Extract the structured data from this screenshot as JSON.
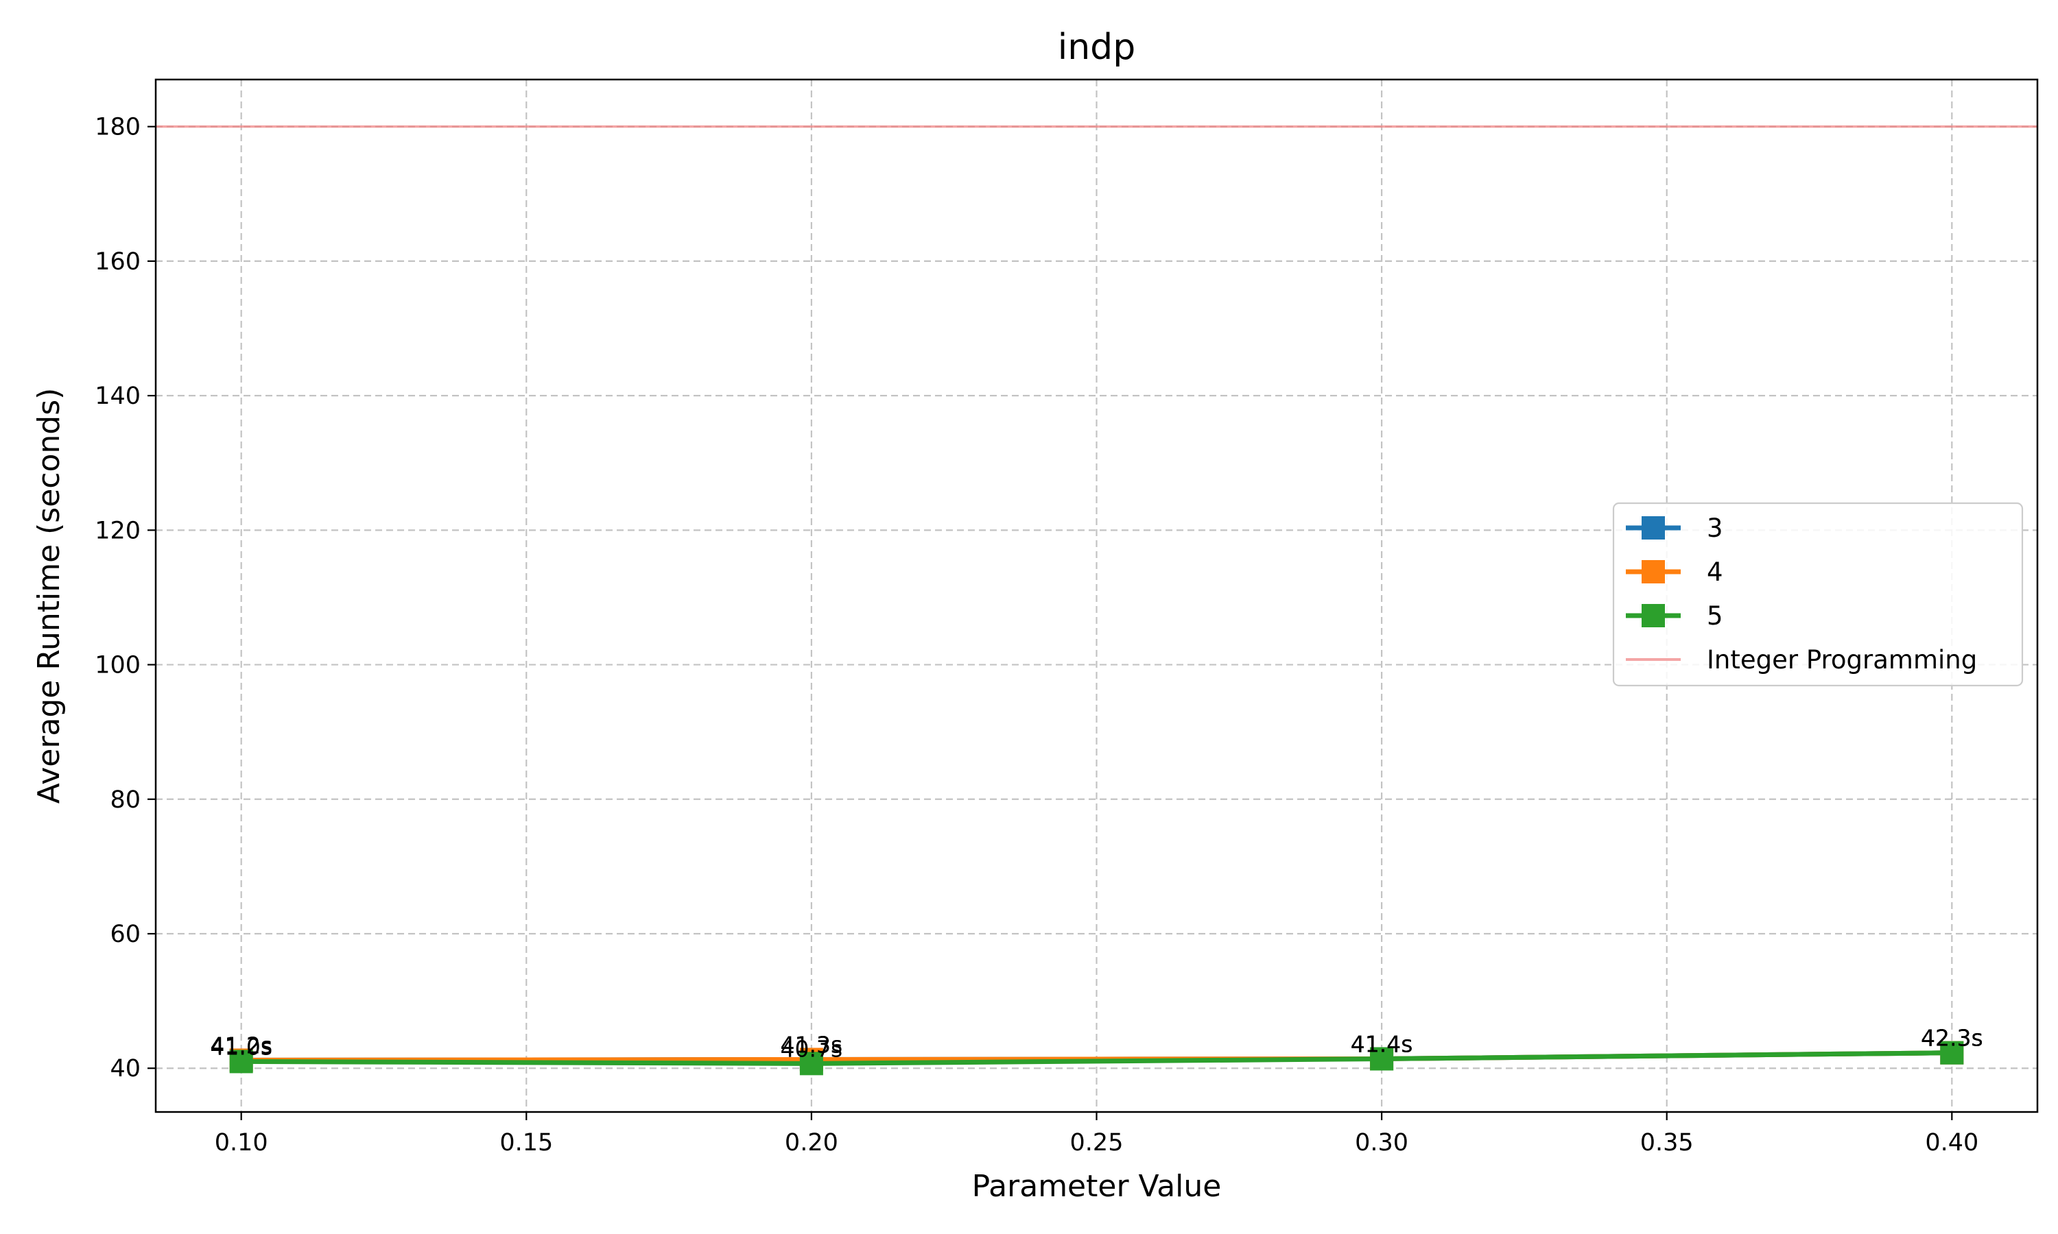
{
  "chart_data": {
    "type": "line",
    "title": "indp",
    "xlabel": "Parameter Value",
    "ylabel": "Average Runtime (seconds)",
    "xlim": [
      0.085,
      0.415
    ],
    "ylim": [
      33.5,
      187
    ],
    "x_ticks": [
      "0.10",
      "0.15",
      "0.20",
      "0.25",
      "0.30",
      "0.35",
      "0.40"
    ],
    "y_ticks": [
      "40",
      "60",
      "80",
      "100",
      "120",
      "140",
      "160",
      "180"
    ],
    "x_tick_values": [
      0.1,
      0.15,
      0.2,
      0.25,
      0.3,
      0.35,
      0.4
    ],
    "y_tick_values": [
      40,
      60,
      80,
      100,
      120,
      140,
      160,
      180
    ],
    "grid": true,
    "legend_position": "center-right",
    "series": [
      {
        "name": "3",
        "color": "#1f77b4",
        "x": [
          0.1,
          0.2,
          0.3,
          0.4
        ],
        "values": [
          41.2,
          41.3,
          41.4,
          42.3
        ],
        "labels": [
          "41.2s",
          "41.3s",
          "41.4s",
          "42.3s"
        ]
      },
      {
        "name": "4",
        "color": "#ff7f0e",
        "x": [
          0.1,
          0.2,
          0.3,
          0.4
        ],
        "values": [
          41.2,
          41.3,
          41.4,
          42.3
        ],
        "labels": [
          "41.2s",
          "41.3s",
          "41.4s",
          "42.3s"
        ]
      },
      {
        "name": "5",
        "color": "#2ca02c",
        "x": [
          0.1,
          0.2,
          0.3,
          0.4
        ],
        "values": [
          41.0,
          40.7,
          41.4,
          42.3
        ],
        "labels": [
          "41.0s",
          "40.7s",
          "41.4s",
          "42.3s"
        ]
      }
    ],
    "reference_line": {
      "name": "Integer Programming",
      "value": 180,
      "color": "#f08080"
    }
  }
}
